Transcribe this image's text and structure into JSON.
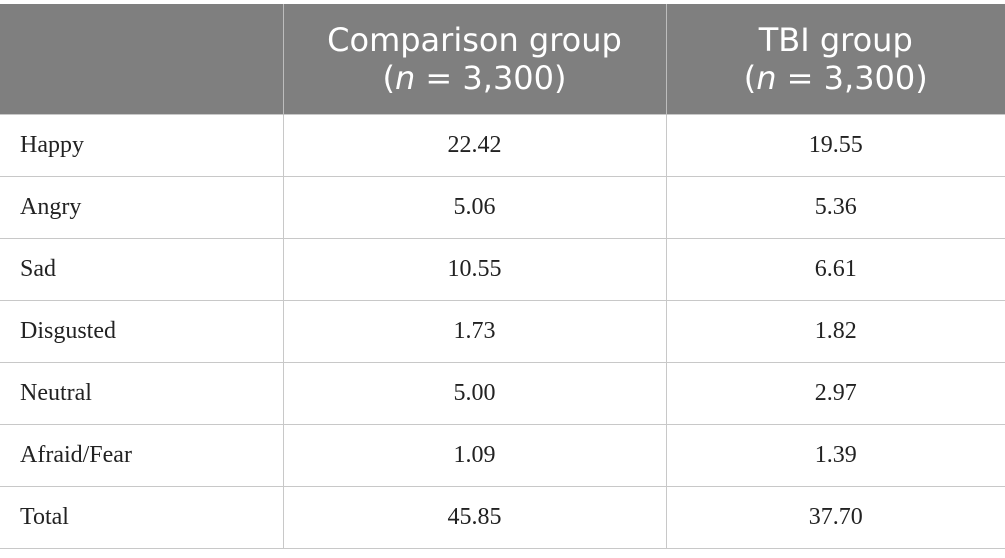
{
  "table": {
    "header": [
      {
        "title": "Comparison group",
        "size": [
          "(",
          "n",
          " = 3,300)"
        ]
      },
      {
        "title": "TBI group",
        "size": [
          "(",
          "n",
          " = 3,300)"
        ]
      }
    ],
    "rows": [
      [
        "Happy",
        "22.42",
        "19.55"
      ],
      [
        "Angry",
        "5.06",
        "5.36"
      ],
      [
        "Sad",
        "10.55",
        "6.61"
      ],
      [
        "Disgusted",
        "1.73",
        "1.82"
      ],
      [
        "Neutral",
        "5.00",
        "2.97"
      ],
      [
        "Afraid/Fear",
        "1.09",
        "1.39"
      ],
      [
        "Total",
        "45.85",
        "37.70"
      ]
    ]
  }
}
